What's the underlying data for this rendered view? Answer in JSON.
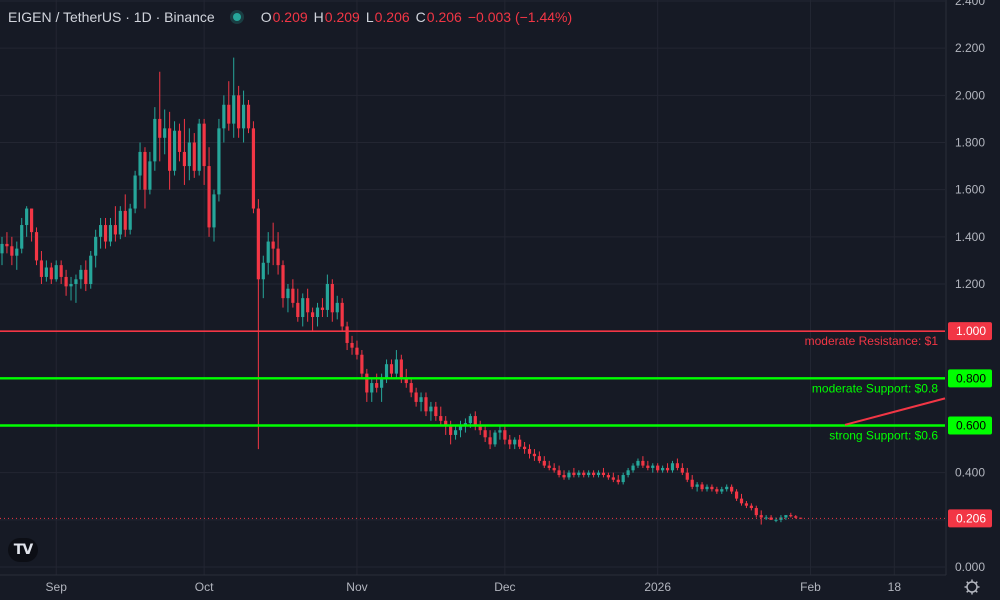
{
  "header": {
    "symbol": "EIGEN / TetherUS · 1D · Binance",
    "o_label": "O",
    "o_value": "0.209",
    "h_label": "H",
    "h_value": "0.209",
    "l_label": "L",
    "l_value": "0.206",
    "c_label": "C",
    "c_value": "0.206",
    "change": "−0.003 (−1.44%)"
  },
  "logo_text": "TV",
  "chart_data": {
    "type": "candlestick",
    "symbol": "EIGEN / TetherUS",
    "interval": "1D",
    "exchange": "Binance",
    "ylim": [
      0,
      2.4
    ],
    "y_ticks": [
      "0.000",
      "0.200",
      "0.400",
      "0.600",
      "0.800",
      "1.000",
      "1.200",
      "1.400",
      "1.600",
      "1.800",
      "2.000",
      "2.200",
      "2.400"
    ],
    "x_ticks": [
      {
        "label": "Sep",
        "index": 11
      },
      {
        "label": "Oct",
        "index": 41
      },
      {
        "label": "Nov",
        "index": 72
      },
      {
        "label": "Dec",
        "index": 102
      },
      {
        "label": "2026",
        "index": 133
      },
      {
        "label": "Feb",
        "index": 164
      },
      {
        "label": "18",
        "index": 181
      }
    ],
    "candles": [
      [
        1.33,
        1.4,
        1.28,
        1.37
      ],
      [
        1.37,
        1.42,
        1.33,
        1.36
      ],
      [
        1.36,
        1.4,
        1.28,
        1.32
      ],
      [
        1.32,
        1.38,
        1.26,
        1.35
      ],
      [
        1.35,
        1.48,
        1.33,
        1.45
      ],
      [
        1.45,
        1.53,
        1.4,
        1.52
      ],
      [
        1.52,
        1.52,
        1.38,
        1.42
      ],
      [
        1.42,
        1.44,
        1.28,
        1.3
      ],
      [
        1.3,
        1.34,
        1.2,
        1.23
      ],
      [
        1.23,
        1.3,
        1.21,
        1.27
      ],
      [
        1.27,
        1.29,
        1.2,
        1.22
      ],
      [
        1.22,
        1.3,
        1.21,
        1.28
      ],
      [
        1.28,
        1.3,
        1.2,
        1.23
      ],
      [
        1.23,
        1.26,
        1.15,
        1.19
      ],
      [
        1.19,
        1.23,
        1.13,
        1.2
      ],
      [
        1.2,
        1.24,
        1.12,
        1.22
      ],
      [
        1.22,
        1.28,
        1.18,
        1.26
      ],
      [
        1.26,
        1.3,
        1.17,
        1.2
      ],
      [
        1.2,
        1.34,
        1.18,
        1.32
      ],
      [
        1.32,
        1.43,
        1.27,
        1.4
      ],
      [
        1.4,
        1.48,
        1.35,
        1.45
      ],
      [
        1.45,
        1.48,
        1.35,
        1.38
      ],
      [
        1.38,
        1.48,
        1.36,
        1.45
      ],
      [
        1.45,
        1.53,
        1.38,
        1.41
      ],
      [
        1.41,
        1.53,
        1.39,
        1.51
      ],
      [
        1.51,
        1.58,
        1.4,
        1.43
      ],
      [
        1.43,
        1.54,
        1.41,
        1.52
      ],
      [
        1.52,
        1.68,
        1.5,
        1.66
      ],
      [
        1.66,
        1.8,
        1.6,
        1.76
      ],
      [
        1.76,
        1.78,
        1.52,
        1.6
      ],
      [
        1.6,
        1.76,
        1.58,
        1.72
      ],
      [
        1.72,
        1.95,
        1.68,
        1.9
      ],
      [
        1.9,
        2.1,
        1.72,
        1.82
      ],
      [
        1.82,
        1.94,
        1.75,
        1.86
      ],
      [
        1.86,
        1.93,
        1.6,
        1.68
      ],
      [
        1.68,
        1.89,
        1.66,
        1.85
      ],
      [
        1.85,
        1.88,
        1.72,
        1.76
      ],
      [
        1.76,
        1.9,
        1.62,
        1.7
      ],
      [
        1.7,
        1.86,
        1.64,
        1.8
      ],
      [
        1.8,
        1.84,
        1.65,
        1.68
      ],
      [
        1.68,
        1.9,
        1.66,
        1.88
      ],
      [
        1.88,
        1.9,
        1.62,
        1.7
      ],
      [
        1.7,
        1.78,
        1.4,
        1.44
      ],
      [
        1.44,
        1.6,
        1.38,
        1.58
      ],
      [
        1.58,
        1.9,
        1.55,
        1.86
      ],
      [
        1.86,
        2.0,
        1.8,
        1.96
      ],
      [
        1.96,
        2.06,
        1.85,
        1.88
      ],
      [
        1.88,
        2.16,
        1.82,
        2.0
      ],
      [
        2.0,
        2.04,
        1.82,
        1.86
      ],
      [
        1.86,
        2.02,
        1.8,
        1.96
      ],
      [
        1.96,
        1.98,
        1.84,
        1.86
      ],
      [
        1.86,
        1.89,
        1.5,
        1.52
      ],
      [
        1.52,
        1.56,
        0.5,
        1.22
      ],
      [
        1.22,
        1.32,
        1.14,
        1.29
      ],
      [
        1.29,
        1.42,
        1.24,
        1.38
      ],
      [
        1.38,
        1.46,
        1.28,
        1.35
      ],
      [
        1.35,
        1.42,
        1.24,
        1.28
      ],
      [
        1.28,
        1.3,
        1.1,
        1.14
      ],
      [
        1.14,
        1.2,
        1.08,
        1.18
      ],
      [
        1.18,
        1.22,
        1.1,
        1.12
      ],
      [
        1.12,
        1.18,
        1.04,
        1.06
      ],
      [
        1.06,
        1.16,
        1.02,
        1.14
      ],
      [
        1.14,
        1.18,
        1.04,
        1.08
      ],
      [
        1.08,
        1.1,
        1.0,
        1.06
      ],
      [
        1.06,
        1.12,
        1.02,
        1.1
      ],
      [
        1.1,
        1.14,
        1.06,
        1.09
      ],
      [
        1.09,
        1.24,
        1.06,
        1.2
      ],
      [
        1.2,
        1.22,
        1.04,
        1.08
      ],
      [
        1.08,
        1.15,
        1.05,
        1.12
      ],
      [
        1.12,
        1.14,
        1.0,
        1.02
      ],
      [
        1.02,
        1.04,
        0.92,
        0.95
      ],
      [
        0.95,
        0.98,
        0.9,
        0.93
      ],
      [
        0.93,
        0.96,
        0.88,
        0.9
      ],
      [
        0.9,
        0.92,
        0.8,
        0.82
      ],
      [
        0.82,
        0.84,
        0.7,
        0.74
      ],
      [
        0.74,
        0.8,
        0.7,
        0.78
      ],
      [
        0.78,
        0.82,
        0.74,
        0.76
      ],
      [
        0.76,
        0.82,
        0.7,
        0.8
      ],
      [
        0.8,
        0.88,
        0.78,
        0.86
      ],
      [
        0.86,
        0.88,
        0.8,
        0.82
      ],
      [
        0.82,
        0.92,
        0.8,
        0.88
      ],
      [
        0.88,
        0.9,
        0.78,
        0.8
      ],
      [
        0.8,
        0.84,
        0.76,
        0.78
      ],
      [
        0.78,
        0.8,
        0.72,
        0.74
      ],
      [
        0.74,
        0.76,
        0.68,
        0.7
      ],
      [
        0.7,
        0.74,
        0.66,
        0.72
      ],
      [
        0.72,
        0.74,
        0.64,
        0.66
      ],
      [
        0.66,
        0.7,
        0.62,
        0.68
      ],
      [
        0.68,
        0.7,
        0.62,
        0.64
      ],
      [
        0.64,
        0.68,
        0.6,
        0.62
      ],
      [
        0.62,
        0.64,
        0.56,
        0.6
      ],
      [
        0.6,
        0.62,
        0.52,
        0.56
      ],
      [
        0.56,
        0.6,
        0.54,
        0.58
      ],
      [
        0.58,
        0.62,
        0.55,
        0.6
      ],
      [
        0.6,
        0.63,
        0.57,
        0.61
      ],
      [
        0.61,
        0.65,
        0.59,
        0.64
      ],
      [
        0.64,
        0.66,
        0.58,
        0.6
      ],
      [
        0.6,
        0.62,
        0.56,
        0.58
      ],
      [
        0.58,
        0.6,
        0.53,
        0.55
      ],
      [
        0.55,
        0.58,
        0.5,
        0.52
      ],
      [
        0.52,
        0.58,
        0.51,
        0.57
      ],
      [
        0.57,
        0.6,
        0.54,
        0.58
      ],
      [
        0.58,
        0.6,
        0.52,
        0.54
      ],
      [
        0.54,
        0.56,
        0.5,
        0.52
      ],
      [
        0.52,
        0.55,
        0.5,
        0.54
      ],
      [
        0.54,
        0.56,
        0.5,
        0.51
      ],
      [
        0.51,
        0.53,
        0.48,
        0.5
      ],
      [
        0.5,
        0.52,
        0.46,
        0.48
      ],
      [
        0.48,
        0.5,
        0.45,
        0.47
      ],
      [
        0.47,
        0.49,
        0.44,
        0.45
      ],
      [
        0.45,
        0.47,
        0.42,
        0.43
      ],
      [
        0.43,
        0.45,
        0.41,
        0.42
      ],
      [
        0.42,
        0.44,
        0.4,
        0.41
      ],
      [
        0.41,
        0.43,
        0.38,
        0.39
      ],
      [
        0.39,
        0.41,
        0.37,
        0.38
      ],
      [
        0.38,
        0.41,
        0.37,
        0.4
      ],
      [
        0.4,
        0.42,
        0.38,
        0.39
      ],
      [
        0.39,
        0.41,
        0.38,
        0.4
      ],
      [
        0.4,
        0.41,
        0.38,
        0.39
      ],
      [
        0.39,
        0.41,
        0.38,
        0.4
      ],
      [
        0.4,
        0.41,
        0.38,
        0.39
      ],
      [
        0.39,
        0.41,
        0.38,
        0.4
      ],
      [
        0.4,
        0.42,
        0.38,
        0.39
      ],
      [
        0.39,
        0.4,
        0.37,
        0.38
      ],
      [
        0.38,
        0.4,
        0.36,
        0.37
      ],
      [
        0.37,
        0.39,
        0.35,
        0.36
      ],
      [
        0.36,
        0.4,
        0.35,
        0.39
      ],
      [
        0.39,
        0.42,
        0.38,
        0.41
      ],
      [
        0.41,
        0.44,
        0.4,
        0.43
      ],
      [
        0.43,
        0.46,
        0.42,
        0.45
      ],
      [
        0.45,
        0.47,
        0.42,
        0.43
      ],
      [
        0.43,
        0.45,
        0.41,
        0.42
      ],
      [
        0.42,
        0.44,
        0.4,
        0.43
      ],
      [
        0.43,
        0.44,
        0.4,
        0.41
      ],
      [
        0.41,
        0.43,
        0.4,
        0.42
      ],
      [
        0.42,
        0.44,
        0.4,
        0.41
      ],
      [
        0.41,
        0.45,
        0.4,
        0.44
      ],
      [
        0.44,
        0.46,
        0.41,
        0.42
      ],
      [
        0.42,
        0.44,
        0.39,
        0.4
      ],
      [
        0.4,
        0.42,
        0.36,
        0.37
      ],
      [
        0.37,
        0.39,
        0.33,
        0.34
      ],
      [
        0.34,
        0.36,
        0.32,
        0.35
      ],
      [
        0.35,
        0.36,
        0.32,
        0.33
      ],
      [
        0.33,
        0.35,
        0.32,
        0.34
      ],
      [
        0.34,
        0.35,
        0.32,
        0.33
      ],
      [
        0.33,
        0.34,
        0.31,
        0.32
      ],
      [
        0.32,
        0.34,
        0.31,
        0.33
      ],
      [
        0.33,
        0.35,
        0.32,
        0.34
      ],
      [
        0.34,
        0.35,
        0.31,
        0.32
      ],
      [
        0.32,
        0.33,
        0.28,
        0.29
      ],
      [
        0.29,
        0.31,
        0.26,
        0.27
      ],
      [
        0.27,
        0.28,
        0.25,
        0.26
      ],
      [
        0.26,
        0.27,
        0.24,
        0.25
      ],
      [
        0.25,
        0.26,
        0.21,
        0.22
      ],
      [
        0.22,
        0.24,
        0.18,
        0.21
      ],
      [
        0.21,
        0.22,
        0.2,
        0.21
      ],
      [
        0.21,
        0.22,
        0.2,
        0.2
      ],
      [
        0.2,
        0.21,
        0.19,
        0.2
      ],
      [
        0.2,
        0.22,
        0.19,
        0.21
      ],
      [
        0.21,
        0.22,
        0.2,
        0.22
      ],
      [
        0.22,
        0.23,
        0.21,
        0.215
      ],
      [
        0.215,
        0.22,
        0.205,
        0.209
      ],
      [
        0.209,
        0.209,
        0.206,
        0.206
      ]
    ],
    "horizontal_levels": [
      {
        "label": "moderate Resistance: $1",
        "value": 1.0,
        "price_label": "1.000",
        "color": "#f23645"
      },
      {
        "label": "moderate Support: $0.8",
        "value": 0.8,
        "price_label": "0.800",
        "color": "#00ff00"
      },
      {
        "label": "strong Support: $0.6",
        "value": 0.6,
        "price_label": "0.600",
        "color": "#00ff00"
      }
    ],
    "last_price": {
      "value": 0.206,
      "label": "0.206",
      "color": "#f23645"
    },
    "trend_line": {
      "from_index": 171,
      "from_value": 0.603,
      "to_value": 0.715,
      "color": "#f23645"
    },
    "colors": {
      "up": "#26a69a",
      "down": "#f23645",
      "background": "#161a25",
      "grid": "#232632",
      "text": "#b2b5be"
    }
  }
}
